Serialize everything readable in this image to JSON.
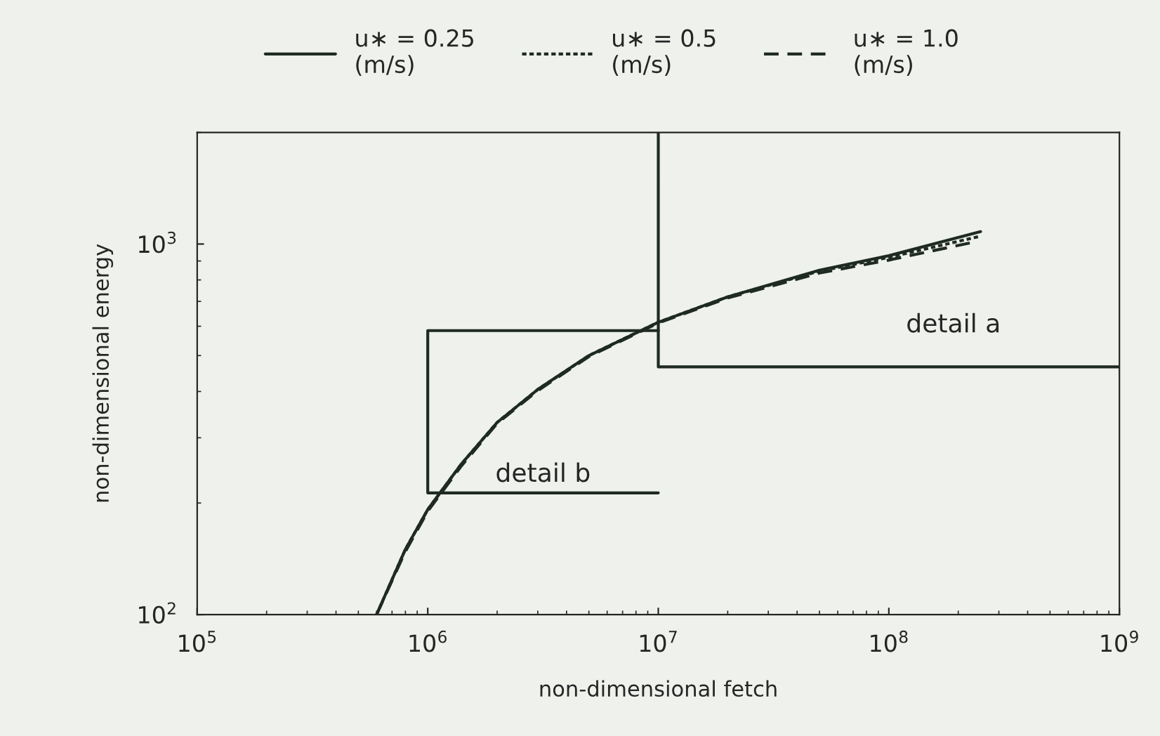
{
  "chart_data": {
    "type": "line",
    "xlabel": "non-dimensional fetch",
    "ylabel": "non-dimensional energy",
    "log": "xy",
    "xlim": [
      100000,
      1000000000
    ],
    "ylim": [
      100,
      2000
    ],
    "xticks": [
      {
        "value": 100000,
        "label": "10$^{5}$"
      },
      {
        "value": 1000000,
        "label": "10$^{6}$"
      },
      {
        "value": 10000000,
        "label": "10$^{7}$"
      },
      {
        "value": 100000000,
        "label": "10$^{8}$"
      },
      {
        "value": 1000000000,
        "label": "10$^{9}$"
      }
    ],
    "yticks": [
      {
        "value": 100,
        "label": "10$^{2}$"
      },
      {
        "value": 1000,
        "label": "10$^{3}$"
      }
    ],
    "grid": false,
    "legend": "top",
    "series": [
      {
        "name": "u∗ = 0.25\n(m/s)",
        "color": "#1e2a22",
        "line_style": "solid",
        "x": [
          600000,
          800000,
          1000000,
          1400000,
          2000000,
          3000000,
          5000000,
          10000000,
          20000000,
          50000000,
          100000000,
          250000000
        ],
        "values": [
          100,
          150,
          192,
          255,
          330,
          405,
          500,
          615,
          720,
          850,
          930,
          1080
        ]
      },
      {
        "name": "u∗ = 0.5\n(m/s)",
        "color": "#1e2a22",
        "line_style": "dotted",
        "x": [
          600000,
          800000,
          1000000,
          1400000,
          2000000,
          3000000,
          5000000,
          10000000,
          20000000,
          50000000,
          100000000,
          250000000
        ],
        "values": [
          100,
          150,
          192,
          255,
          330,
          405,
          500,
          615,
          720,
          845,
          920,
          1050
        ]
      },
      {
        "name": "u∗ = 1.0\n(m/s)",
        "color": "#1e2a22",
        "line_style": "dashed",
        "x": [
          600000,
          800000,
          1000000,
          1400000,
          2000000,
          3000000,
          5000000,
          10000000,
          20000000,
          50000000,
          100000000,
          230000000
        ],
        "values": [
          100,
          148,
          190,
          252,
          328,
          402,
          497,
          612,
          715,
          835,
          905,
          1010
        ]
      },
      {
        "color": "#1e2a22",
        "line_style": "solid",
        "x": [
          10000000,
          10000000,
          1000000000
        ],
        "values": [
          2000,
          466,
          466
        ]
      },
      {
        "color": "#1e2a22",
        "line_style": "solid",
        "x": [
          10000000,
          1000000,
          1000000,
          10000000
        ],
        "values": [
          584,
          584,
          213,
          213
        ]
      }
    ],
    "annotations": [
      "detail a",
      "detail b"
    ]
  }
}
